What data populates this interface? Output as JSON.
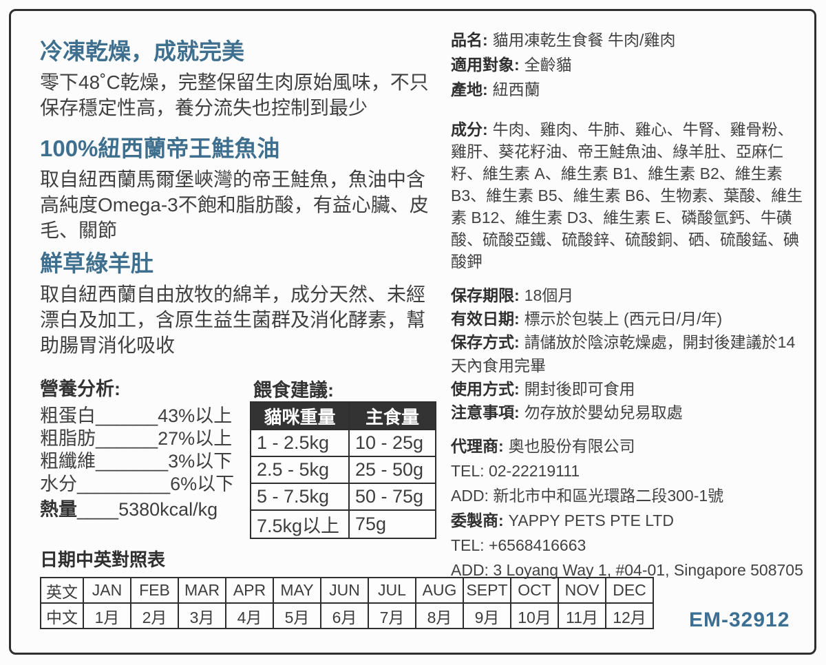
{
  "colors": {
    "accent_blue": "#3e6f8e",
    "text": "#3d3d3d",
    "table_header_bg": "#333333",
    "border": "#2e2e2e"
  },
  "left": {
    "sections": [
      {
        "heading": "冷凍乾燥，成就完美",
        "body": "零下48˚C乾燥，完整保留生肉原始風味，不只保存穩定性高，養分流失也控制到最少"
      },
      {
        "heading": "100%紐西蘭帝王鮭魚油",
        "body": "取自紐西蘭馬爾堡峽灣的帝王鮭魚，魚油中含高純度Omega-3不飽和脂肪酸，有益心臟、皮毛、關節"
      },
      {
        "heading": "鮮草綠羊肚",
        "body": "取自紐西蘭自由放牧的綿羊，成分天然、未經漂白及加工，含原生益生菌群及消化酵素，幫助腸胃消化吸收"
      }
    ],
    "nutrition": {
      "title": "營養分析:",
      "rows": [
        "粗蛋白______43%以上",
        "粗脂肪______27%以上",
        "粗纖維_______3%以下",
        "水分_________6%以下"
      ],
      "energy_label": "熱量",
      "energy_value": "____5380kcal/kg"
    },
    "feeding": {
      "title": "餵食建議:",
      "headers": [
        "貓咪重量",
        "主食量"
      ],
      "rows": [
        [
          "1 - 2.5kg",
          "10 - 25g"
        ],
        [
          "2.5 - 5kg",
          "25 - 50g"
        ],
        [
          "5 - 7.5kg",
          "50 - 75g"
        ],
        [
          "7.5kg以上",
          "75g"
        ]
      ]
    },
    "date_table": {
      "title": "日期中英對照表",
      "row_labels": [
        "英文",
        "中文"
      ],
      "english": [
        "JAN",
        "FEB",
        "MAR",
        "APR",
        "MAY",
        "JUN",
        "JUL",
        "AUG",
        "SEPT",
        "OCT",
        "NOV",
        "DEC"
      ],
      "chinese": [
        "1月",
        "2月",
        "3月",
        "4月",
        "5月",
        "6月",
        "7月",
        "8月",
        "9月",
        "10月",
        "11月",
        "12月"
      ]
    }
  },
  "right": {
    "product": [
      {
        "label": "品名:",
        "value": "貓用凍乾生食餐 牛肉/雞肉"
      },
      {
        "label": "適用對象:",
        "value": "全齡貓"
      },
      {
        "label": "產地:",
        "value": "紐西蘭"
      }
    ],
    "ingredients": {
      "label": "成分:",
      "value": "牛肉、雞肉、牛肺、雞心、牛腎、雞骨粉、雞肝、葵花籽油、帝王鮭魚油、綠羊肚、亞麻仁籽、維生素 A、維生素 B1、維生素 B2、維生素 B3、維生素 B5、維生素 B6、生物素、葉酸、維生素 B12、維生素 D3、維生素 E、磷酸氫鈣、牛磺酸、硫酸亞鐵、硫酸鋅、硫酸銅、硒、硫酸錳、碘酸鉀"
    },
    "storage": [
      {
        "label": "保存期限:",
        "value": "18個月"
      },
      {
        "label": "有效日期:",
        "value": "標示於包裝上 (西元日/月/年)"
      },
      {
        "label": "保存方式:",
        "value": "請儲放於陰涼乾燥處，開封後建議於14天內食用完畢"
      },
      {
        "label": "使用方式:",
        "value": "開封後即可食用"
      },
      {
        "label": "注意事項:",
        "value": "勿存放於嬰幼兒易取處"
      }
    ],
    "distributor": {
      "agent_label": "代理商:",
      "agent_value": "奧也股份有限公司",
      "agent_tel": "TEL: 02-22219111",
      "agent_add": "ADD: 新北市中和區光環路二段300-1號",
      "maker_label": "委製商:",
      "maker_value": "YAPPY PETS PTE LTD",
      "maker_tel": "TEL: +6568416663",
      "maker_add": "ADD: 3 Loyang Way 1, #04-01, Singapore 508705"
    }
  },
  "footer": {
    "em_code": "EM-32912"
  }
}
